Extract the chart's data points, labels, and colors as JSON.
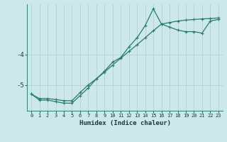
{
  "xlabel": "Humidex (Indice chaleur)",
  "bg_color": "#cce8e8",
  "line_color": "#2a7a6a",
  "grid_color": "#b8d4d4",
  "x_data": [
    0,
    1,
    2,
    3,
    4,
    5,
    6,
    7,
    8,
    9,
    10,
    11,
    12,
    13,
    14,
    15,
    16,
    17,
    18,
    19,
    20,
    21,
    22,
    23
  ],
  "y_wavy": [
    -5.3,
    -5.5,
    -5.5,
    -5.55,
    -5.6,
    -5.6,
    -5.35,
    -5.1,
    -4.8,
    -4.55,
    -4.25,
    -4.1,
    -3.75,
    -3.45,
    -3.05,
    -2.5,
    -3.0,
    -3.1,
    -3.2,
    -3.25,
    -3.25,
    -3.3,
    -2.9,
    -2.85
  ],
  "y_linear": [
    -5.3,
    -5.45,
    -5.45,
    -5.48,
    -5.52,
    -5.52,
    -5.25,
    -5.0,
    -4.8,
    -4.58,
    -4.35,
    -4.12,
    -3.9,
    -3.68,
    -3.45,
    -3.22,
    -3.0,
    -2.95,
    -2.9,
    -2.87,
    -2.85,
    -2.83,
    -2.82,
    -2.8
  ],
  "ylim": [
    -5.85,
    -2.35
  ],
  "xlim": [
    -0.5,
    23.5
  ],
  "yticks": [
    -5.0,
    -4.0
  ],
  "xticks": [
    0,
    1,
    2,
    3,
    4,
    5,
    6,
    7,
    8,
    9,
    10,
    11,
    12,
    13,
    14,
    15,
    16,
    17,
    18,
    19,
    20,
    21,
    22,
    23
  ]
}
